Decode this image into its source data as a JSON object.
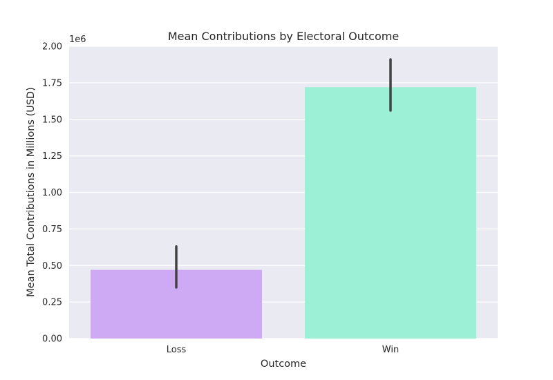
{
  "chart_data": {
    "type": "bar",
    "title": "Mean Contributions by Electoral Outcome",
    "xlabel": "Outcome",
    "ylabel": "Mean Total Contributions in Millions (USD)",
    "offset_label": "1e6",
    "categories": [
      "Loss",
      "Win"
    ],
    "values": [
      470000,
      1720000
    ],
    "error_bars": [
      [
        350000,
        630000
      ],
      [
        1560000,
        1910000
      ]
    ],
    "bar_colors": [
      "#cfaaf4",
      "#9cf0d6"
    ],
    "ylim": [
      0,
      2000000
    ],
    "yticks": [
      0,
      250000,
      500000,
      750000,
      1000000,
      1250000,
      1500000,
      1750000,
      2000000
    ],
    "ytick_labels": [
      "0.00",
      "0.25",
      "0.50",
      "0.75",
      "1.00",
      "1.25",
      "1.50",
      "1.75",
      "2.00"
    ],
    "grid": true,
    "legend": "none",
    "background": "#eaeaf2",
    "error_color": "#424242"
  }
}
